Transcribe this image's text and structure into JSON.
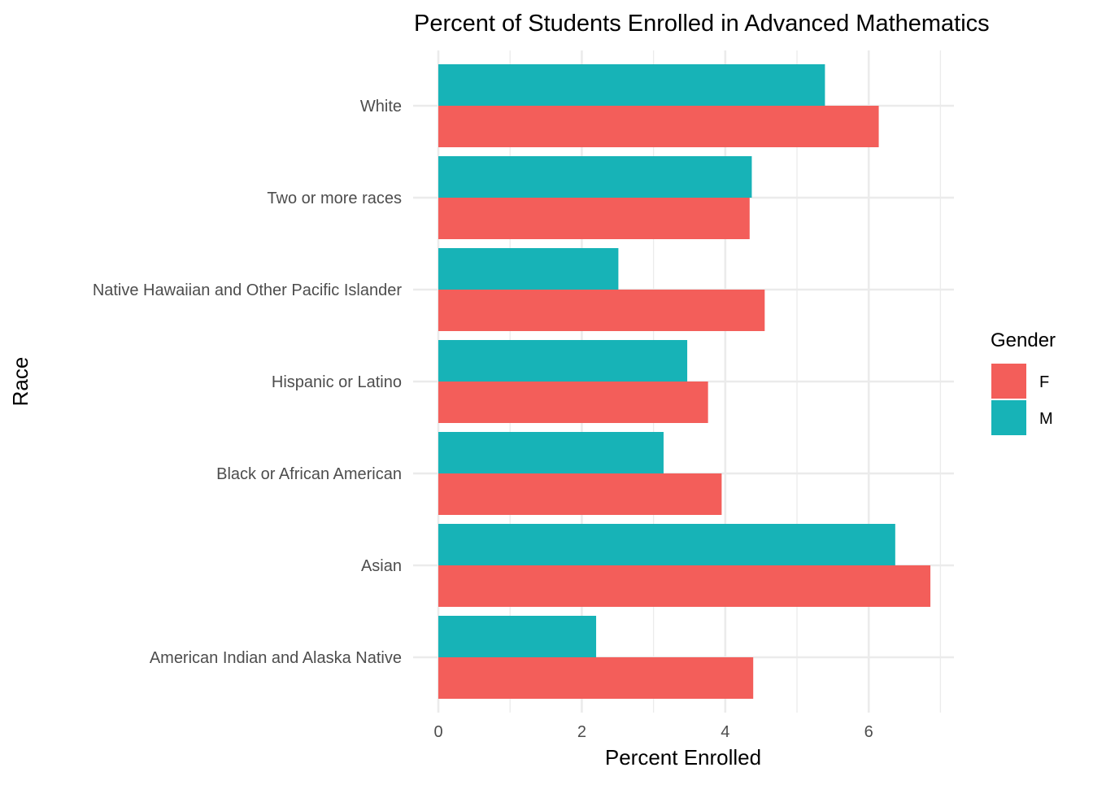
{
  "chart_data": {
    "type": "bar",
    "orientation": "horizontal",
    "title": "Percent of Students Enrolled in Advanced Mathematics",
    "xlabel": "Percent Enrolled",
    "ylabel": "Race",
    "xlim": [
      0,
      7.2
    ],
    "x_ticks": [
      0,
      2,
      4,
      6
    ],
    "x_tick_labels": [
      "0",
      "2",
      "4",
      "6"
    ],
    "categories": [
      "American Indian and Alaska Native",
      "Asian",
      "Black or African American",
      "Hispanic or Latino",
      "Native Hawaiian and Other Pacific Islander",
      "Two or more races",
      "White"
    ],
    "series": [
      {
        "name": "F",
        "color": "#F35E5A",
        "values": [
          4.39,
          6.86,
          3.95,
          3.76,
          4.55,
          4.34,
          6.14
        ]
      },
      {
        "name": "M",
        "color": "#17B3B7",
        "values": [
          2.2,
          6.37,
          3.14,
          3.47,
          2.51,
          4.37,
          5.39
        ]
      }
    ],
    "legend": {
      "title": "Gender",
      "position": "right"
    },
    "grid": true
  }
}
